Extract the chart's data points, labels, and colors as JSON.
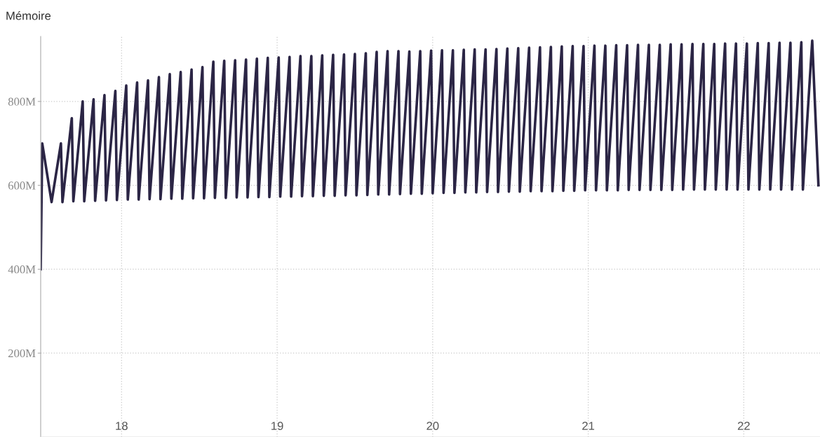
{
  "chart_data": {
    "type": "line",
    "title": "Mémoire",
    "xlim": [
      17.48,
      22.49
    ],
    "xticks": [
      18,
      19,
      20,
      21,
      22
    ],
    "ylim": [
      0,
      955
    ],
    "yticks": [
      {
        "value": 200,
        "label": "200M"
      },
      {
        "value": 400,
        "label": "400M"
      },
      {
        "value": 600,
        "label": "600M"
      },
      {
        "value": 800,
        "label": "800M"
      }
    ],
    "grid": true,
    "legend": false,
    "marker": "none",
    "line_style": "solid",
    "series": [
      {
        "color": "#2b2545",
        "x": [
          17.48,
          17.49,
          17.55,
          17.61,
          17.62,
          17.68,
          17.69,
          17.75,
          17.76,
          17.82,
          17.83,
          17.89,
          17.9,
          17.96,
          17.97,
          18.03,
          18.04,
          18.1,
          18.11,
          18.17,
          18.18,
          18.24,
          18.25,
          18.31,
          18.32,
          18.38,
          18.39,
          18.45,
          18.46,
          18.52,
          18.53,
          18.59,
          18.6,
          18.66,
          18.67,
          18.73,
          18.74,
          18.8,
          18.81,
          18.87,
          18.88,
          18.94,
          18.95,
          19.01,
          19.02,
          19.08,
          19.09,
          19.15,
          19.16,
          19.22,
          19.23,
          19.29,
          19.3,
          19.36,
          19.37,
          19.43,
          19.44,
          19.5,
          19.51,
          19.57,
          19.58,
          19.64,
          19.65,
          19.71,
          19.72,
          19.78,
          19.79,
          19.85,
          19.86,
          19.92,
          19.93,
          19.99,
          20.0,
          20.06,
          20.07,
          20.13,
          20.14,
          20.2,
          20.21,
          20.27,
          20.28,
          20.34,
          20.35,
          20.41,
          20.42,
          20.48,
          20.49,
          20.55,
          20.56,
          20.62,
          20.63,
          20.69,
          20.7,
          20.76,
          20.77,
          20.83,
          20.84,
          20.9,
          20.91,
          20.97,
          20.98,
          21.04,
          21.05,
          21.11,
          21.12,
          21.18,
          21.19,
          21.25,
          21.26,
          21.32,
          21.33,
          21.39,
          21.4,
          21.46,
          21.47,
          21.53,
          21.54,
          21.6,
          21.61,
          21.67,
          21.68,
          21.74,
          21.75,
          21.81,
          21.82,
          21.88,
          21.89,
          21.95,
          21.96,
          22.02,
          22.03,
          22.09,
          22.1,
          22.16,
          22.17,
          22.23,
          22.24,
          22.3,
          22.31,
          22.37,
          22.38,
          22.44,
          22.48
        ],
        "values": [
          400,
          700,
          560,
          700,
          560,
          760,
          562,
          800,
          562,
          805,
          563,
          815,
          564,
          825,
          565,
          838,
          566,
          845,
          566,
          850,
          567,
          858,
          567,
          865,
          568,
          870,
          568,
          876,
          569,
          882,
          569,
          895,
          570,
          897,
          570,
          898,
          571,
          900,
          571,
          902,
          572,
          904,
          572,
          905,
          573,
          906,
          573,
          908,
          574,
          908,
          574,
          910,
          575,
          911,
          575,
          912,
          576,
          913,
          576,
          915,
          577,
          918,
          578,
          920,
          578,
          920,
          579,
          919,
          580,
          920,
          580,
          921,
          581,
          922,
          582,
          922,
          582,
          923,
          583,
          924,
          583,
          924,
          584,
          925,
          584,
          926,
          585,
          927,
          585,
          928,
          586,
          929,
          586,
          930,
          586,
          931,
          587,
          932,
          587,
          932,
          588,
          933,
          588,
          933,
          588,
          934,
          588,
          934,
          589,
          935,
          589,
          935,
          589,
          935,
          589,
          936,
          589,
          936,
          590,
          937,
          590,
          937,
          590,
          937,
          590,
          938,
          590,
          938,
          590,
          938,
          590,
          939,
          590,
          939,
          590,
          940,
          590,
          940,
          590,
          941,
          590,
          945,
          600
        ]
      }
    ]
  }
}
